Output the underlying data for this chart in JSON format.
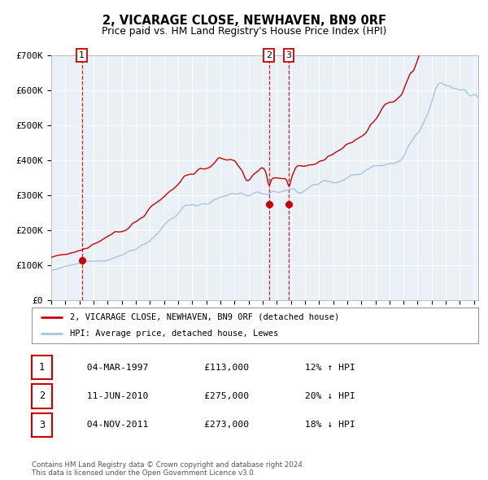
{
  "title": "2, VICARAGE CLOSE, NEWHAVEN, BN9 0RF",
  "subtitle": "Price paid vs. HM Land Registry's House Price Index (HPI)",
  "xlim": [
    1995.0,
    2025.3
  ],
  "ylim": [
    0,
    700000
  ],
  "yticks": [
    0,
    100000,
    200000,
    300000,
    400000,
    500000,
    600000,
    700000
  ],
  "ytick_labels": [
    "£0",
    "£100K",
    "£200K",
    "£300K",
    "£400K",
    "£500K",
    "£600K",
    "£700K"
  ],
  "hpi_color": "#a8c4e0",
  "price_color": "#cc0000",
  "dashed_line_color": "#cc0000",
  "background_color": "#eaf0f8",
  "plot_bg_color": "#eaf0f8",
  "grid_color": "#ffffff",
  "sale_points": [
    {
      "date_num": 1997.17,
      "price": 113000,
      "label": "1"
    },
    {
      "date_num": 2010.44,
      "price": 275000,
      "label": "2"
    },
    {
      "date_num": 2011.84,
      "price": 273000,
      "label": "3"
    }
  ],
  "vline_dates": [
    1997.17,
    2010.44,
    2011.84
  ],
  "legend_price_label": "2, VICARAGE CLOSE, NEWHAVEN, BN9 0RF (detached house)",
  "legend_hpi_label": "HPI: Average price, detached house, Lewes",
  "table_rows": [
    {
      "num": "1",
      "date": "04-MAR-1997",
      "price": "£113,000",
      "hpi": "12% ↑ HPI"
    },
    {
      "num": "2",
      "date": "11-JUN-2010",
      "price": "£275,000",
      "hpi": "20% ↓ HPI"
    },
    {
      "num": "3",
      "date": "04-NOV-2011",
      "price": "£273,000",
      "hpi": "18% ↓ HPI"
    }
  ],
  "footnote": "Contains HM Land Registry data © Crown copyright and database right 2024.\nThis data is licensed under the Open Government Licence v3.0."
}
